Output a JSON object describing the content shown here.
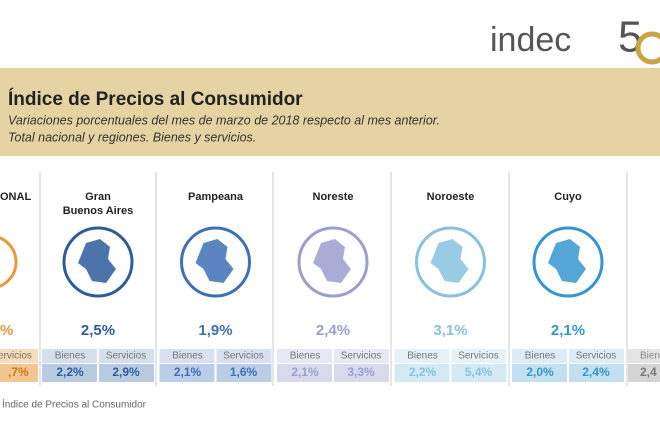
{
  "header": {
    "logo_text": "indec",
    "logo_number": "5",
    "title": "Índice de Precios al Consumidor",
    "subtitle_lines": [
      "Variaciones porcentuales del mes de marzo de 2018 respecto al mes anterior.",
      "Total nacional y regiones. Bienes y servicios."
    ]
  },
  "partial_left": {
    "name": "ONAL",
    "total": "%",
    "services_label": "ervicios",
    "services": ",7%"
  },
  "regions": [
    {
      "name_lines": [
        "Gran",
        "Buenos Aires"
      ],
      "total": "2,5%",
      "goods_label": "Bienes",
      "services_label": "Servicios",
      "goods": "2,2%",
      "services": "2,9%",
      "color": "#2d5c9c",
      "light": "#b9cbe3"
    },
    {
      "name_lines": [
        "Pampeana"
      ],
      "total": "1,9%",
      "goods_label": "Bienes",
      "services_label": "Servicios",
      "goods": "2,1%",
      "services": "1,6%",
      "color": "#3d70b5",
      "light": "#bccde8"
    },
    {
      "name_lines": [
        "Noreste"
      ],
      "total": "2,4%",
      "goods_label": "Bienes",
      "services_label": "Servicios",
      "goods": "2,1%",
      "services": "3,3%",
      "color": "#9c9ecf",
      "light": "#d9d9ee"
    },
    {
      "name_lines": [
        "Noroeste"
      ],
      "total": "3,1%",
      "goods_label": "Bienes",
      "services_label": "Servicios",
      "goods": "2,2%",
      "services": "5,4%",
      "color": "#86c2df",
      "light": "#d3e9f4"
    },
    {
      "name_lines": [
        "Cuyo"
      ],
      "total": "2,1%",
      "goods_label": "Bienes",
      "services_label": "Servicios",
      "goods": "2,0%",
      "services": "2,4%",
      "color": "#3596cf",
      "light": "#c3e0f1"
    }
  ],
  "partial_right": {
    "goods_label": "Biene",
    "goods": "2,4"
  },
  "footer": "Índice de Precios al Consumidor"
}
